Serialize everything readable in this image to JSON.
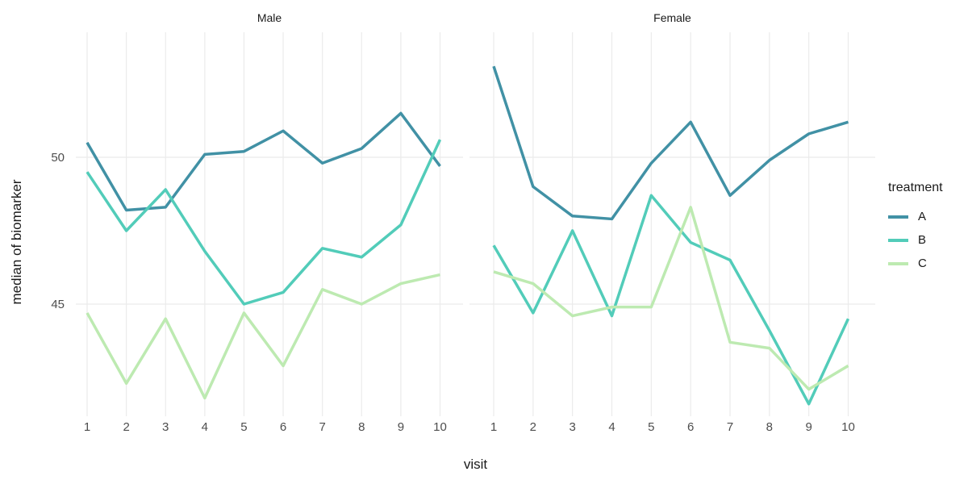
{
  "chart_data": {
    "type": "line",
    "x": [
      1,
      2,
      3,
      4,
      5,
      6,
      7,
      8,
      9,
      10
    ],
    "xlabel": "visit",
    "ylabel": "median of biomarker",
    "yticks": [
      45,
      50
    ],
    "ylim": [
      41.2,
      54.3
    ],
    "grid": true,
    "legend": {
      "title": "treatment",
      "position": "right",
      "entries": [
        {
          "label": "A",
          "color": "#4191a5"
        },
        {
          "label": "B",
          "color": "#52ccb9"
        },
        {
          "label": "C",
          "color": "#bdeab1"
        }
      ]
    },
    "facets": [
      {
        "label": "Male",
        "series": [
          {
            "name": "A",
            "values": [
              50.5,
              48.2,
              48.3,
              50.1,
              50.2,
              50.9,
              49.8,
              50.3,
              51.5,
              49.7
            ]
          },
          {
            "name": "B",
            "values": [
              49.5,
              47.5,
              48.9,
              46.8,
              45.0,
              45.4,
              46.9,
              46.6,
              47.7,
              50.6
            ]
          },
          {
            "name": "C",
            "values": [
              44.7,
              42.3,
              44.5,
              41.8,
              44.7,
              42.9,
              45.5,
              45.0,
              45.7,
              46.0
            ]
          }
        ]
      },
      {
        "label": "Female",
        "series": [
          {
            "name": "A",
            "values": [
              53.1,
              49.0,
              48.0,
              47.9,
              49.8,
              51.2,
              48.7,
              49.9,
              50.8,
              51.2
            ]
          },
          {
            "name": "B",
            "values": [
              47.0,
              44.7,
              47.5,
              44.6,
              48.7,
              47.1,
              46.5,
              44.1,
              41.6,
              44.5
            ]
          },
          {
            "name": "C",
            "values": [
              46.1,
              45.7,
              44.6,
              44.9,
              44.9,
              48.3,
              43.7,
              43.5,
              42.1,
              42.9
            ]
          }
        ]
      }
    ],
    "colors": {
      "background": "#ffffff",
      "grid": "#ebebeb",
      "axis_text": "#4d4d4d",
      "title_text": "#1a1a1a"
    }
  }
}
